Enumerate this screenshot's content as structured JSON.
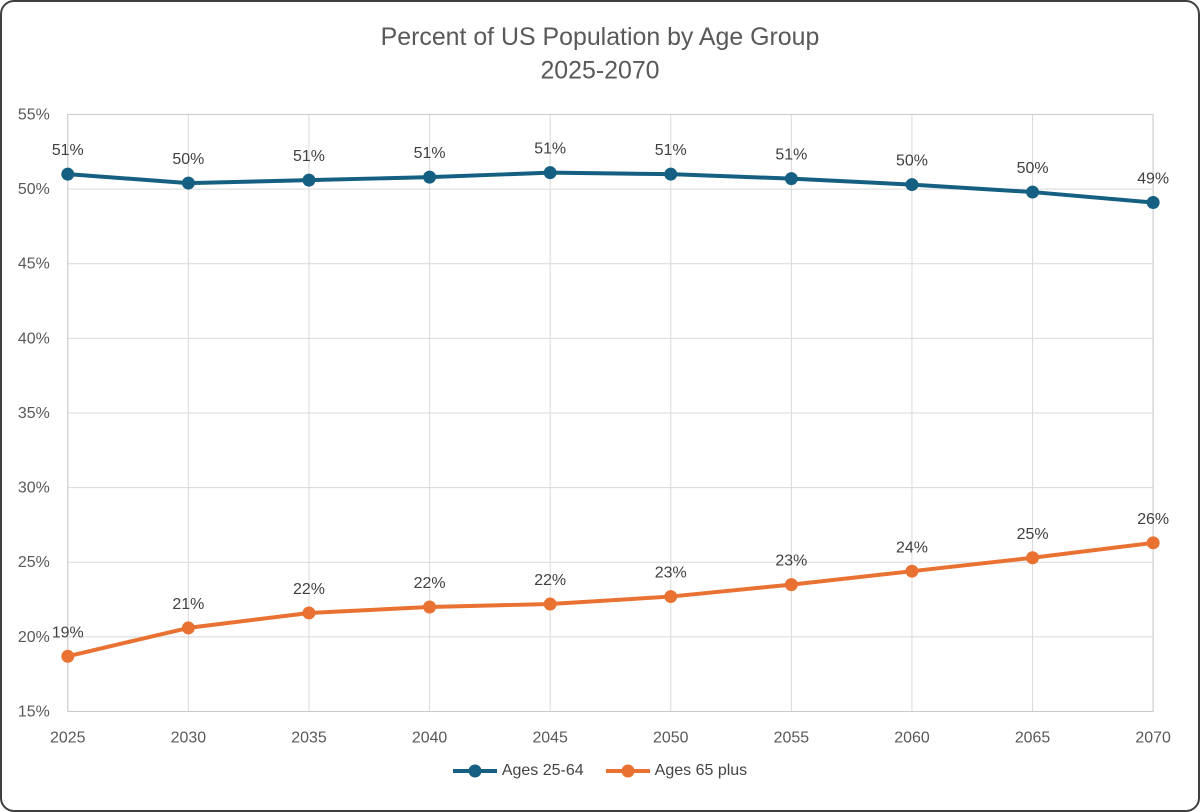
{
  "chart_data": {
    "type": "line",
    "title": "Percent of US Population by Age Group",
    "subtitle": "2025-2070",
    "x": [
      "2025",
      "2030",
      "2035",
      "2040",
      "2045",
      "2050",
      "2055",
      "2060",
      "2065",
      "2070"
    ],
    "series": [
      {
        "name": "Ages 25-64",
        "color": "#156082",
        "values": [
          51.0,
          50.4,
          50.6,
          50.8,
          51.1,
          51.0,
          50.7,
          50.3,
          49.8,
          49.1
        ],
        "point_labels": [
          "51%",
          "50%",
          "51%",
          "51%",
          "51%",
          "51%",
          "51%",
          "50%",
          "50%",
          "49%"
        ]
      },
      {
        "name": "Ages 65 plus",
        "color": "#E97132",
        "values": [
          18.7,
          20.6,
          21.6,
          22.0,
          22.2,
          22.7,
          23.5,
          24.4,
          25.3,
          26.3
        ],
        "point_labels": [
          "19%",
          "21%",
          "22%",
          "22%",
          "22%",
          "23%",
          "23%",
          "24%",
          "25%",
          "26%"
        ]
      }
    ],
    "ylim": [
      15,
      55
    ],
    "y_ticks": [
      {
        "value": 15,
        "label": "15%"
      },
      {
        "value": 20,
        "label": "20%"
      },
      {
        "value": 25,
        "label": "25%"
      },
      {
        "value": 30,
        "label": "30%"
      },
      {
        "value": 35,
        "label": "35%"
      },
      {
        "value": 40,
        "label": "40%"
      },
      {
        "value": 45,
        "label": "45%"
      },
      {
        "value": 50,
        "label": "50%"
      },
      {
        "value": 55,
        "label": "55%"
      }
    ],
    "grid": true,
    "legend_position": "bottom",
    "colors": {
      "grid": "#D9D9D9",
      "plot_border": "#CBCBCB",
      "title_text": "#595959",
      "tick_text": "#595959",
      "data_label_text": "#404040",
      "legend_text": "#444444",
      "frame_border": "#3F3F3F"
    }
  }
}
